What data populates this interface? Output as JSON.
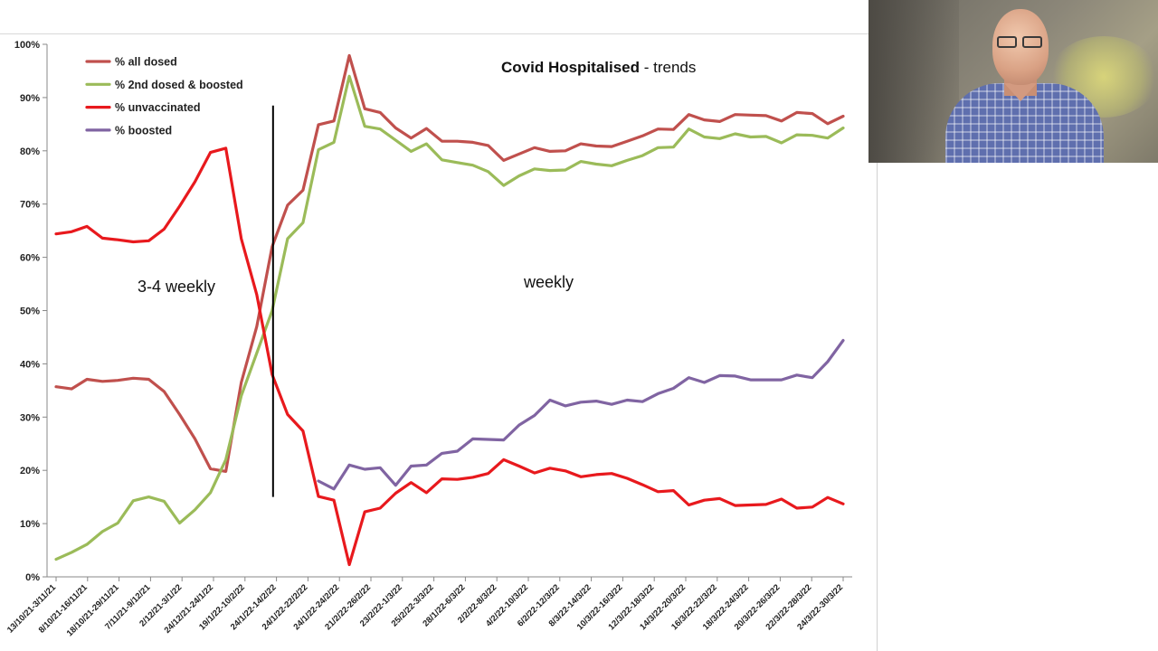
{
  "chart_data": {
    "type": "line",
    "title_bold": "Covid Hospitalised",
    "title_rest": " - trends",
    "ylim": [
      0,
      100
    ],
    "y_ticks": [
      "0%",
      "10%",
      "20%",
      "30%",
      "40%",
      "50%",
      "60%",
      "70%",
      "80%",
      "90%",
      "100%"
    ],
    "x_ticks": [
      "13/10/21-3/11/21",
      "8/10/21-16/11/21",
      "18/10/21-29/11/21",
      "7/11/21-9/12/21",
      "2/12/21-3/1/22",
      "24/12/21-24/1/22",
      "19/1/22-10/2/22",
      "24/1/22-14/2/22",
      "24/1/22-22/2/22",
      "24/1/22-24/2/22",
      "21/2/22-26/2/22",
      "23/2/22-1/3/22",
      "25/2/22-3/3/22",
      "28/1/22-6/3/22",
      "2/2/22-8/3/22",
      "4/2/22-10/3/22",
      "6/2/22-12/3/22",
      "8/3/22-14/3/22",
      "10/3/22-16/3/22",
      "12/3/22-18/3/22",
      "14/3/22-20/3/22",
      "16/3/22-22/3/22",
      "18/3/22-24/3/22",
      "20/3/22-26/3/22",
      "22/3/22-28/3/22",
      "24/3/22-30/3/22"
    ],
    "grid": false,
    "legend_placement": "top-left",
    "annotations": [
      {
        "text": "3-4 weekly"
      },
      {
        "text": "weekly"
      }
    ],
    "divider_index": 14,
    "series": [
      {
        "name": "% all dosed",
        "color": "#c0504d",
        "values": [
          35.7,
          35.3,
          37.1,
          36.7,
          36.9,
          37.3,
          37.1,
          34.8,
          30.5,
          25.9,
          20.3,
          19.8,
          36.5,
          47.0,
          62.0,
          69.8,
          72.6,
          84.9,
          85.6,
          97.9,
          87.9,
          87.2,
          84.3,
          82.4,
          84.2,
          81.8,
          81.8,
          81.6,
          81.0,
          78.2,
          79.4,
          80.6,
          79.9,
          80.0,
          81.3,
          80.9,
          80.8,
          81.8,
          82.8,
          84.1,
          84.0,
          86.8,
          85.8,
          85.5,
          86.8,
          86.7,
          86.6,
          85.6,
          87.2,
          87.0,
          85.1,
          86.5
        ]
      },
      {
        "name": "% 2nd dosed & boosted",
        "color": "#9bbb59",
        "values": [
          3.3,
          4.6,
          6.1,
          8.5,
          10.1,
          14.3,
          15.0,
          14.2,
          10.1,
          12.6,
          15.8,
          22.0,
          34.0,
          42.0,
          50.0,
          63.5,
          66.5,
          80.2,
          81.6,
          94.0,
          84.6,
          84.1,
          82.0,
          79.9,
          81.3,
          78.3,
          77.8,
          77.3,
          76.1,
          73.5,
          75.3,
          76.6,
          76.3,
          76.4,
          78.0,
          77.5,
          77.2,
          78.2,
          79.1,
          80.6,
          80.7,
          84.1,
          82.6,
          82.3,
          83.2,
          82.6,
          82.7,
          81.5,
          83.0,
          82.9,
          82.4,
          84.3
        ]
      },
      {
        "name": "% unvaccinated",
        "color": "#e8191d",
        "values": [
          64.4,
          64.8,
          65.8,
          63.6,
          63.3,
          62.9,
          63.1,
          65.3,
          69.6,
          74.2,
          79.7,
          80.5,
          63.5,
          53.0,
          38.0,
          30.5,
          27.4,
          15.1,
          14.4,
          2.3,
          12.2,
          12.9,
          15.7,
          17.7,
          15.8,
          18.4,
          18.3,
          18.7,
          19.4,
          22.0,
          20.8,
          19.5,
          20.4,
          19.9,
          18.8,
          19.2,
          19.4,
          18.5,
          17.3,
          16.0,
          16.2,
          13.5,
          14.4,
          14.7,
          13.4,
          13.5,
          13.6,
          14.6,
          12.9,
          13.1,
          14.9,
          13.7
        ]
      },
      {
        "name": "% boosted",
        "color": "#8064a2",
        "values": [
          null,
          null,
          null,
          null,
          null,
          null,
          null,
          null,
          null,
          null,
          null,
          null,
          null,
          null,
          null,
          null,
          null,
          18.0,
          16.5,
          21.0,
          20.2,
          20.5,
          17.2,
          20.8,
          21.0,
          23.2,
          23.6,
          25.9,
          25.8,
          25.7,
          28.5,
          30.3,
          33.2,
          32.1,
          32.8,
          33.0,
          32.4,
          33.2,
          32.9,
          34.4,
          35.4,
          37.4,
          36.5,
          37.8,
          37.7,
          37.0,
          37.0,
          37.0,
          37.9,
          37.4,
          40.4,
          44.4
        ]
      }
    ]
  }
}
